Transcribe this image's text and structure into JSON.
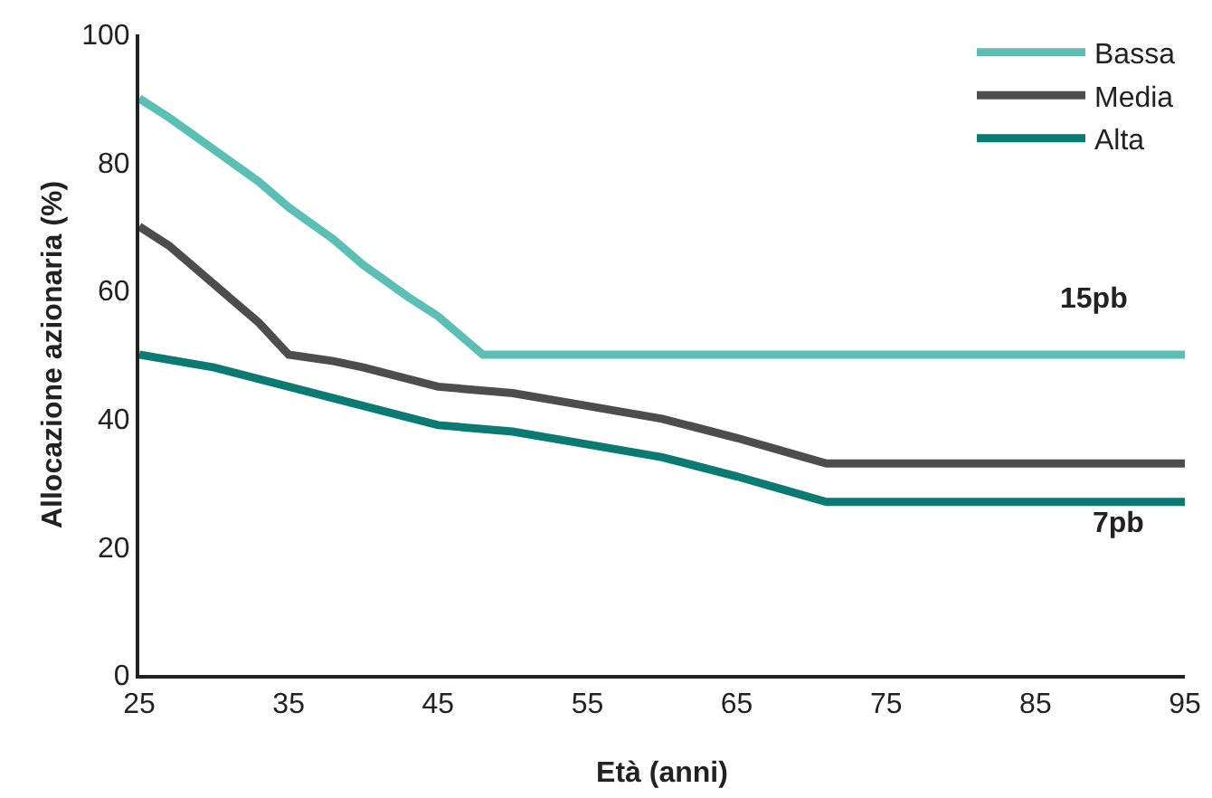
{
  "chart_data": {
    "type": "line",
    "xlabel": "Età (anni)",
    "ylabel": "Allocazione azionaria (%)",
    "series": [
      {
        "name": "Bassa",
        "color": "#5bbfb5",
        "x": [
          25,
          27,
          30,
          33,
          35,
          38,
          40,
          43,
          45,
          47,
          48,
          55,
          65,
          75,
          85,
          95
        ],
        "values": [
          90,
          87,
          82,
          77,
          73,
          68,
          64,
          59,
          56,
          52,
          50,
          50,
          50,
          50,
          50,
          50
        ]
      },
      {
        "name": "Media",
        "color": "#4d4d4d",
        "x": [
          25,
          27,
          30,
          33,
          35,
          38,
          40,
          45,
          50,
          55,
          60,
          65,
          68,
          71,
          75,
          85,
          95
        ],
        "values": [
          70,
          67,
          61,
          55,
          50,
          49,
          48,
          45,
          44,
          42,
          40,
          37,
          35,
          33,
          33,
          33,
          33
        ]
      },
      {
        "name": "Alta",
        "color": "#0b7a72",
        "x": [
          25,
          30,
          35,
          40,
          45,
          50,
          55,
          60,
          65,
          68,
          71,
          75,
          85,
          95
        ],
        "values": [
          50,
          48,
          45,
          42,
          39,
          38,
          36,
          34,
          31,
          29,
          27,
          27,
          27,
          27
        ]
      }
    ],
    "xlim": [
      25,
      95
    ],
    "xticks": [
      25,
      35,
      45,
      55,
      65,
      75,
      85,
      95
    ],
    "ylim": [
      0,
      100
    ],
    "yticks": [
      0,
      20,
      40,
      60,
      80,
      100
    ],
    "grid": false,
    "legend": "top right",
    "marker": "none",
    "line_style": "solid",
    "annotations": [
      "15pb",
      "7pb"
    ]
  }
}
